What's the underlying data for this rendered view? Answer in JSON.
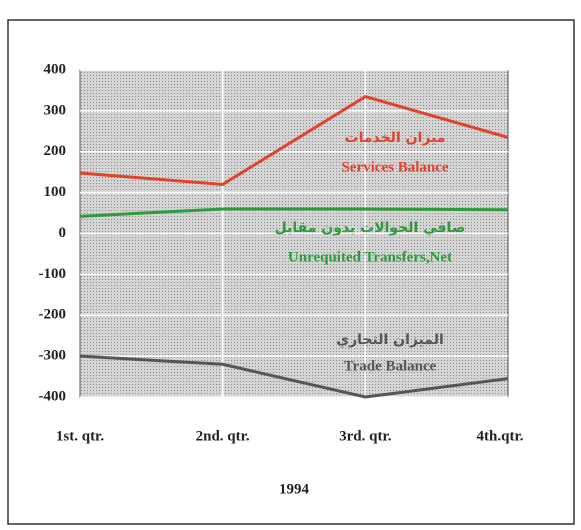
{
  "chart_data": {
    "type": "line",
    "categories": [
      "1st. qtr.",
      "2nd. qtr.",
      "3rd. qtr.",
      "4th.qtr."
    ],
    "x_label": "1994",
    "series": [
      {
        "name": "Services Balance",
        "name_ar": "ميزان الخدمات",
        "color": "#e0432b",
        "values": [
          148,
          120,
          335,
          235
        ]
      },
      {
        "name": "Unrequited Transfers,Net",
        "name_ar": "صافي الحوالات بدون مقابل",
        "color": "#2e9a3e",
        "values": [
          42,
          60,
          60,
          58
        ]
      },
      {
        "name": "Trade Balance",
        "name_ar": "الميزان التجاري",
        "color": "#555555",
        "values": [
          -300,
          -320,
          -400,
          -355
        ]
      }
    ],
    "ylim": [
      -400,
      400
    ],
    "yticks": [
      -400,
      -300,
      -200,
      -100,
      0,
      100,
      200,
      300,
      400
    ],
    "grid": true
  }
}
